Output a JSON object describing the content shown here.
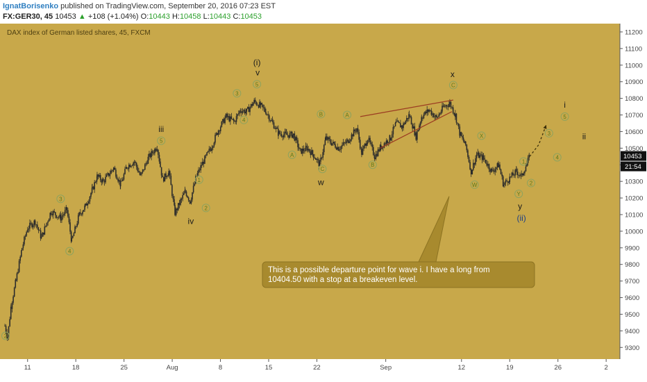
{
  "header": {
    "author": "IgnatBorisenko",
    "published": "published on TradingView.com, September 20, 2016 07:23 EST",
    "symbol": "FX:GER30, 45",
    "last": "10453",
    "change_arrow": "▲",
    "change": "+108 (+1.04%)",
    "o_label": "O:",
    "o_value": "10443",
    "h_label": "H:",
    "h_value": "10458",
    "l_label": "L:",
    "l_value": "10443",
    "c_label": "C:",
    "c_value": "10453"
  },
  "colors": {
    "background": "#c8a84a",
    "candle": "#2b2b2b",
    "wave_circle": "#8ea35e",
    "wave_text": "#5a7a1c",
    "trendline": "#9b3b22",
    "callout_fill": "#a88a2e",
    "callout_text": "#ffffff",
    "price_tag": "#111111"
  },
  "chart_data": {
    "type": "candlestick",
    "title": "DAX index of German listed shares, 45, FXCM",
    "ylim": [
      9230,
      11250
    ],
    "y_ticks": [
      "9300",
      "9400",
      "9500",
      "9600",
      "9700",
      "9800",
      "9900",
      "10000",
      "10100",
      "10200",
      "10300",
      "10400",
      "10500",
      "10600",
      "10700",
      "10800",
      "10900",
      "11000",
      "11100",
      "11200"
    ],
    "x_ticks": [
      "11",
      "18",
      "25",
      "Aug",
      "8",
      "15",
      "22",
      "Sep",
      "12",
      "19",
      "26",
      "2"
    ],
    "x_tick_days": [
      11,
      18,
      25,
      32,
      39,
      46,
      53,
      63,
      74,
      81,
      88,
      95
    ],
    "x_range_days": [
      7.5,
      97
    ],
    "price_path": [
      [
        7.7,
        9430
      ],
      [
        8.1,
        9360
      ],
      [
        8.6,
        9550
      ],
      [
        9.3,
        9700
      ],
      [
        10.2,
        9900
      ],
      [
        11,
        10020
      ],
      [
        12.1,
        10060
      ],
      [
        13,
        9960
      ],
      [
        14.4,
        10120
      ],
      [
        15.8,
        10080
      ],
      [
        16.7,
        10130
      ],
      [
        17.4,
        9940
      ],
      [
        18.5,
        10100
      ],
      [
        19.4,
        10150
      ],
      [
        20.4,
        10250
      ],
      [
        21.1,
        10330
      ],
      [
        22,
        10300
      ],
      [
        23.5,
        10380
      ],
      [
        24.5,
        10280
      ],
      [
        25.4,
        10390
      ],
      [
        26.5,
        10420
      ],
      [
        27.4,
        10330
      ],
      [
        28.5,
        10440
      ],
      [
        29.8,
        10510
      ],
      [
        30.6,
        10310
      ],
      [
        31.5,
        10360
      ],
      [
        32.4,
        10110
      ],
      [
        33.2,
        10180
      ],
      [
        33.9,
        10240
      ],
      [
        34.6,
        10180
      ],
      [
        35.5,
        10330
      ],
      [
        36.4,
        10410
      ],
      [
        37.6,
        10500
      ],
      [
        38.7,
        10610
      ],
      [
        39.8,
        10690
      ],
      [
        41,
        10660
      ],
      [
        41.9,
        10730
      ],
      [
        42.8,
        10720
      ],
      [
        43.9,
        10780
      ],
      [
        44.7,
        10760
      ],
      [
        45.6,
        10720
      ],
      [
        46.6,
        10650
      ],
      [
        47.4,
        10590
      ],
      [
        48.6,
        10580
      ],
      [
        49.6,
        10580
      ],
      [
        50.6,
        10480
      ],
      [
        51.6,
        10500
      ],
      [
        52.5,
        10460
      ],
      [
        53.4,
        10400
      ],
      [
        54.3,
        10560
      ],
      [
        55.2,
        10530
      ],
      [
        56.2,
        10500
      ],
      [
        57.4,
        10540
      ],
      [
        58.8,
        10620
      ],
      [
        59.5,
        10470
      ],
      [
        60.4,
        10560
      ],
      [
        61.4,
        10450
      ],
      [
        62.3,
        10510
      ],
      [
        63.6,
        10560
      ],
      [
        64.5,
        10650
      ],
      [
        65.4,
        10630
      ],
      [
        66.4,
        10700
      ],
      [
        67.4,
        10570
      ],
      [
        68.2,
        10690
      ],
      [
        69.3,
        10730
      ],
      [
        70.4,
        10680
      ],
      [
        71.4,
        10750
      ],
      [
        72.3,
        10770
      ],
      [
        73.1,
        10700
      ],
      [
        73.8,
        10580
      ],
      [
        74.6,
        10520
      ],
      [
        75.4,
        10360
      ],
      [
        76.2,
        10460
      ],
      [
        77.2,
        10440
      ],
      [
        78.4,
        10360
      ],
      [
        79.4,
        10400
      ],
      [
        80.1,
        10280
      ],
      [
        81,
        10320
      ],
      [
        82,
        10360
      ],
      [
        82.7,
        10330
      ],
      [
        83.9,
        10450
      ]
    ],
    "projection_path": [
      [
        83.9,
        10450
      ],
      [
        85.2,
        10520
      ],
      [
        86.3,
        10640
      ]
    ],
    "channel_lines": [
      [
        [
          59.3,
          10690
        ],
        [
          72.8,
          10790
        ]
      ],
      [
        [
          62.2,
          10500
        ],
        [
          72.6,
          10720
        ]
      ]
    ],
    "callout_pointer": [
      [
        72.2,
        10210
      ],
      [
        62.8,
        9940
      ],
      [
        60.3,
        9900
      ]
    ],
    "wave_labels": [
      {
        "text": "2",
        "x": 7.8,
        "y": 9370,
        "circled": true
      },
      {
        "text": "3",
        "x": 15.8,
        "y": 10195,
        "circled": true
      },
      {
        "text": "4",
        "x": 17.1,
        "y": 9880,
        "circled": true
      },
      {
        "text": "iii",
        "x": 30.4,
        "y": 10615,
        "circled": false
      },
      {
        "text": "5",
        "x": 30.4,
        "y": 10545,
        "circled": true
      },
      {
        "text": "1",
        "x": 35.9,
        "y": 10310,
        "circled": true
      },
      {
        "text": "2",
        "x": 36.9,
        "y": 10140,
        "circled": true
      },
      {
        "text": "iv",
        "x": 34.7,
        "y": 10060,
        "circled": false
      },
      {
        "text": "3",
        "x": 41.4,
        "y": 10830,
        "circled": true
      },
      {
        "text": "4",
        "x": 42.4,
        "y": 10670,
        "circled": true
      },
      {
        "text": "(i)",
        "x": 44.3,
        "y": 11015,
        "circled": false
      },
      {
        "text": "v",
        "x": 44.4,
        "y": 10955,
        "circled": false
      },
      {
        "text": "5",
        "x": 44.3,
        "y": 10885,
        "circled": true
      },
      {
        "text": "A",
        "x": 49.4,
        "y": 10460,
        "circled": true
      },
      {
        "text": "B",
        "x": 53.6,
        "y": 10705,
        "circled": true
      },
      {
        "text": "C",
        "x": 53.8,
        "y": 10375,
        "circled": true
      },
      {
        "text": "w",
        "x": 53.6,
        "y": 10295,
        "circled": false
      },
      {
        "text": "A",
        "x": 57.4,
        "y": 10700,
        "circled": true
      },
      {
        "text": "B",
        "x": 61.1,
        "y": 10400,
        "circled": true
      },
      {
        "text": "x",
        "x": 72.7,
        "y": 10945,
        "circled": false
      },
      {
        "text": "C",
        "x": 72.8,
        "y": 10880,
        "circled": true
      },
      {
        "text": "X",
        "x": 76.9,
        "y": 10575,
        "circled": true
      },
      {
        "text": "W",
        "x": 75.9,
        "y": 10280,
        "circled": true
      },
      {
        "text": "1",
        "x": 83.0,
        "y": 10420,
        "circled": true
      },
      {
        "text": "2",
        "x": 84.1,
        "y": 10290,
        "circled": true
      },
      {
        "text": "Y",
        "x": 82.3,
        "y": 10225,
        "circled": true
      },
      {
        "text": "y",
        "x": 82.5,
        "y": 10150,
        "circled": false
      },
      {
        "text": "(ii)",
        "x": 82.7,
        "y": 10080,
        "circled": false
      },
      {
        "text": "3",
        "x": 86.7,
        "y": 10590,
        "circled": true
      },
      {
        "text": "4",
        "x": 87.9,
        "y": 10445,
        "circled": true
      },
      {
        "text": "i",
        "x": 89.0,
        "y": 10760,
        "circled": false
      },
      {
        "text": "5",
        "x": 89.0,
        "y": 10690,
        "circled": true
      },
      {
        "text": "ii",
        "x": 91.8,
        "y": 10570,
        "circled": false
      }
    ],
    "last_price_tag": "10453",
    "last_price_value": 10453,
    "countdown_tag": "21:54",
    "annotation": {
      "line1": "This is a possible departure point for wave i. I have a long from",
      "line2": "10404.50 with a stop at a breakeven level."
    }
  }
}
